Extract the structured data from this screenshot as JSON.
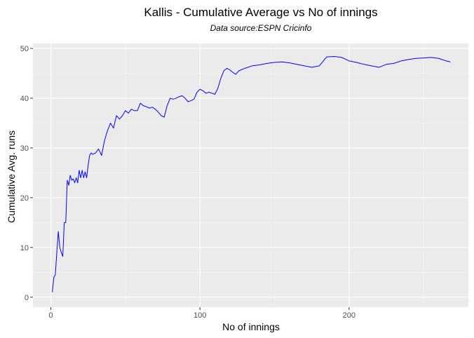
{
  "chart_data": {
    "type": "line",
    "title": "Kallis - Cumulative Average vs No of innings",
    "subtitle": "Data source:ESPN Cricinfo",
    "xlabel": "No of innings",
    "ylabel": "Cumulative Avg. runs",
    "xlim": [
      -12,
      280
    ],
    "ylim": [
      -2,
      51
    ],
    "x_ticks": [
      0,
      100,
      200
    ],
    "y_ticks": [
      0,
      10,
      20,
      30,
      40,
      50
    ],
    "grid": true,
    "series": [
      {
        "name": "Cumulative Average",
        "color": "#0000ff",
        "x": [
          1,
          2,
          3,
          4,
          5,
          6,
          7,
          8,
          9,
          10,
          11,
          12,
          13,
          14,
          15,
          16,
          17,
          18,
          19,
          20,
          21,
          22,
          23,
          24,
          25,
          26,
          27,
          28,
          30,
          32,
          34,
          36,
          38,
          40,
          42,
          44,
          46,
          48,
          50,
          52,
          54,
          56,
          58,
          60,
          62,
          64,
          66,
          68,
          70,
          72,
          74,
          76,
          78,
          80,
          82,
          84,
          86,
          88,
          90,
          92,
          94,
          96,
          98,
          100,
          102,
          104,
          106,
          108,
          110,
          112,
          114,
          116,
          118,
          120,
          122,
          124,
          126,
          130,
          135,
          140,
          145,
          150,
          155,
          160,
          165,
          170,
          175,
          180,
          185,
          190,
          195,
          200,
          205,
          210,
          215,
          220,
          225,
          230,
          235,
          240,
          245,
          250,
          255,
          260,
          265,
          268
        ],
        "y": [
          1,
          4,
          4.5,
          9,
          13.2,
          10,
          9,
          8.2,
          15,
          15,
          23.5,
          22.5,
          24.5,
          23.5,
          23.8,
          23,
          24,
          23,
          25.5,
          24,
          25.5,
          24,
          25.2,
          24,
          26.5,
          28.5,
          29,
          28.7,
          29,
          29.8,
          28.5,
          31.5,
          33.5,
          35,
          34,
          36.5,
          35.8,
          36.5,
          37.5,
          37,
          37.8,
          37.5,
          37.5,
          39,
          38.5,
          38.3,
          38,
          38.2,
          37.8,
          37.2,
          36.5,
          36.2,
          38.5,
          40,
          39.8,
          40,
          40.3,
          40.5,
          40,
          39.3,
          39.5,
          39.8,
          41.2,
          41.8,
          41.5,
          41,
          41.2,
          41,
          40.8,
          42,
          44,
          45.5,
          46,
          45.7,
          45.2,
          44.8,
          45.5,
          46,
          46.5,
          46.7,
          47,
          47.2,
          47.3,
          47.1,
          46.8,
          46.5,
          46.2,
          46.5,
          48.3,
          48.4,
          48.2,
          47.5,
          47.2,
          46.8,
          46.5,
          46.2,
          46.8,
          47,
          47.5,
          47.8,
          48,
          48.1,
          48.2,
          48,
          47.5,
          47.3
        ]
      }
    ]
  }
}
